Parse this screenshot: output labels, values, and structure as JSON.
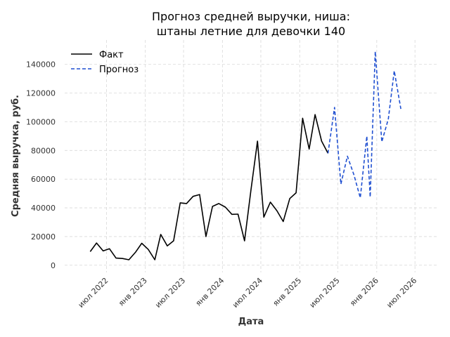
{
  "chart_data": {
    "type": "line",
    "title_line1": "Прогноз средней выручки, ниша:",
    "title_line2": "штаны летние для девочки 140",
    "xlabel": "Дата",
    "ylabel": "Средняя выручка, руб.",
    "ylim": [
      -5000,
      157000
    ],
    "yticks": [
      0,
      20000,
      40000,
      60000,
      80000,
      100000,
      120000,
      140000
    ],
    "xlim": [
      "2021-12-15",
      "2026-10-15"
    ],
    "xticks": [
      {
        "date": "2022-07-01",
        "label": "июл 2022"
      },
      {
        "date": "2023-01-01",
        "label": "янв 2023"
      },
      {
        "date": "2023-07-01",
        "label": "июл 2023"
      },
      {
        "date": "2024-01-01",
        "label": "янв 2024"
      },
      {
        "date": "2024-07-01",
        "label": "июл 2024"
      },
      {
        "date": "2025-01-01",
        "label": "янв 2025"
      },
      {
        "date": "2025-07-01",
        "label": "июл 2025"
      },
      {
        "date": "2026-01-01",
        "label": "янв 2026"
      },
      {
        "date": "2026-07-01",
        "label": "июл 2026"
      }
    ],
    "grid": true,
    "legend_position": "top-left",
    "series": [
      {
        "name": "Факт",
        "color": "#000000",
        "style": "solid",
        "points": [
          [
            "2022-04-15",
            9500
          ],
          [
            "2022-05-15",
            15500
          ],
          [
            "2022-06-15",
            10000
          ],
          [
            "2022-07-15",
            11500
          ],
          [
            "2022-08-15",
            5000
          ],
          [
            "2022-09-15",
            4700
          ],
          [
            "2022-10-15",
            3800
          ],
          [
            "2022-11-15",
            9000
          ],
          [
            "2022-12-15",
            15300
          ],
          [
            "2023-01-15",
            11000
          ],
          [
            "2023-02-15",
            3800
          ],
          [
            "2023-03-15",
            21500
          ],
          [
            "2023-04-15",
            13500
          ],
          [
            "2023-05-15",
            17000
          ],
          [
            "2023-06-15",
            43500
          ],
          [
            "2023-07-15",
            43000
          ],
          [
            "2023-08-15",
            48000
          ],
          [
            "2023-09-15",
            49300
          ],
          [
            "2023-10-15",
            20000
          ],
          [
            "2023-11-15",
            41000
          ],
          [
            "2023-12-15",
            43000
          ],
          [
            "2024-01-15",
            40500
          ],
          [
            "2024-02-15",
            35500
          ],
          [
            "2024-03-15",
            35600
          ],
          [
            "2024-04-15",
            17000
          ],
          [
            "2024-05-15",
            52000
          ],
          [
            "2024-06-15",
            86500
          ],
          [
            "2024-07-15",
            33500
          ],
          [
            "2024-08-15",
            44000
          ],
          [
            "2024-09-15",
            38000
          ],
          [
            "2024-10-15",
            30500
          ],
          [
            "2024-11-15",
            46500
          ],
          [
            "2024-12-15",
            50500
          ],
          [
            "2025-01-15",
            102500
          ],
          [
            "2025-02-15",
            81000
          ],
          [
            "2025-03-15",
            105000
          ],
          [
            "2025-04-15",
            86500
          ],
          [
            "2025-05-15",
            78000
          ]
        ]
      },
      {
        "name": "Прогноз",
        "color": "#1f4fd1",
        "style": "dashed",
        "points": [
          [
            "2025-05-15",
            78000
          ],
          [
            "2025-06-15",
            110000
          ],
          [
            "2025-07-15",
            56500
          ],
          [
            "2025-08-15",
            76000
          ],
          [
            "2025-09-15",
            63000
          ],
          [
            "2025-10-15",
            47000
          ],
          [
            "2025-11-15",
            90000
          ],
          [
            "2025-12-01",
            47500
          ],
          [
            "2025-12-25",
            149000
          ],
          [
            "2026-01-25",
            86000
          ],
          [
            "2026-02-25",
            102000
          ],
          [
            "2026-03-25",
            135500
          ],
          [
            "2026-04-25",
            109000
          ]
        ]
      }
    ]
  }
}
